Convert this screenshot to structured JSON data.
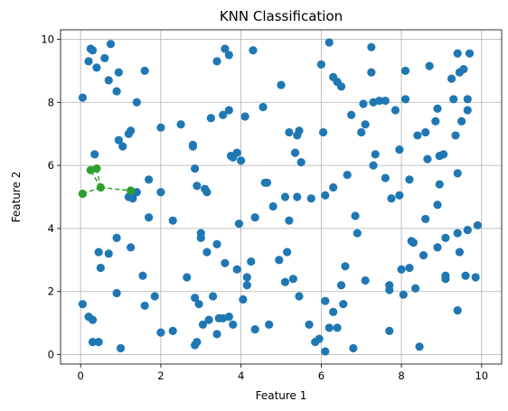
{
  "chart_data": {
    "type": "scatter",
    "title": "KNN Classification",
    "xlabel": "Feature 1",
    "ylabel": "Feature 2",
    "xlim": [
      -0.5,
      10.5
    ],
    "ylim": [
      -0.3,
      10.3
    ],
    "xticks": [
      "0",
      "2",
      "4",
      "6",
      "8",
      "10"
    ],
    "yticks": [
      "0",
      "2",
      "4",
      "6",
      "8",
      "10"
    ],
    "grid": true,
    "legend": "none",
    "colors": {
      "points": "#1f77b4",
      "query": "#2ca02c",
      "grid": "#b0b0b0"
    },
    "query_point": [
      0.5,
      5.3
    ],
    "neighbors": [
      [
        0.05,
        5.1
      ],
      [
        0.25,
        5.85
      ],
      [
        0.4,
        5.9
      ],
      [
        1.25,
        5.2
      ]
    ],
    "points": [
      [
        0.2,
        9.3
      ],
      [
        0.25,
        9.7
      ],
      [
        0.3,
        9.65
      ],
      [
        0.4,
        9.1
      ],
      [
        0.6,
        9.4
      ],
      [
        0.7,
        8.7
      ],
      [
        0.75,
        9.85
      ],
      [
        0.9,
        8.35
      ],
      [
        0.95,
        8.95
      ],
      [
        0.05,
        8.15
      ],
      [
        0.35,
        6.35
      ],
      [
        0.95,
        6.8
      ],
      [
        1.05,
        6.6
      ],
      [
        1.2,
        7.0
      ],
      [
        1.25,
        7.1
      ],
      [
        1.4,
        8.0
      ],
      [
        1.6,
        9.0
      ],
      [
        2.0,
        7.2
      ],
      [
        2.5,
        7.3
      ],
      [
        2.8,
        6.6
      ],
      [
        2.8,
        6.65
      ],
      [
        1.7,
        5.55
      ],
      [
        1.7,
        4.35
      ],
      [
        2.0,
        5.15
      ],
      [
        2.3,
        4.25
      ],
      [
        1.2,
        5.0
      ],
      [
        1.3,
        4.95
      ],
      [
        1.4,
        5.15
      ],
      [
        1.25,
        3.4
      ],
      [
        0.9,
        3.7
      ],
      [
        0.7,
        3.2
      ],
      [
        0.45,
        3.25
      ],
      [
        0.5,
        2.75
      ],
      [
        0.05,
        1.6
      ],
      [
        0.2,
        1.2
      ],
      [
        0.3,
        1.1
      ],
      [
        0.3,
        0.4
      ],
      [
        0.45,
        0.4
      ],
      [
        0.9,
        1.95
      ],
      [
        1.0,
        0.2
      ],
      [
        1.55,
        2.5
      ],
      [
        1.6,
        1.55
      ],
      [
        1.85,
        1.85
      ],
      [
        2.0,
        0.7
      ],
      [
        2.3,
        0.75
      ],
      [
        2.65,
        2.45
      ],
      [
        2.85,
        1.8
      ],
      [
        2.9,
        0.4
      ],
      [
        2.85,
        0.3
      ],
      [
        2.95,
        1.6
      ],
      [
        3.05,
        0.95
      ],
      [
        3.2,
        1.1
      ],
      [
        3.3,
        1.85
      ],
      [
        3.4,
        0.65
      ],
      [
        3.45,
        1.15
      ],
      [
        3.55,
        1.15
      ],
      [
        3.7,
        1.2
      ],
      [
        3.8,
        0.95
      ],
      [
        3.6,
        2.9
      ],
      [
        3.9,
        2.7
      ],
      [
        3.95,
        4.15
      ],
      [
        4.05,
        1.75
      ],
      [
        4.15,
        2.45
      ],
      [
        4.15,
        2.2
      ],
      [
        4.25,
        2.95
      ],
      [
        4.35,
        0.8
      ],
      [
        4.35,
        4.35
      ],
      [
        3.0,
        3.7
      ],
      [
        3.0,
        3.85
      ],
      [
        3.15,
        3.25
      ],
      [
        3.4,
        3.5
      ],
      [
        2.85,
        5.9
      ],
      [
        2.9,
        5.35
      ],
      [
        3.1,
        5.25
      ],
      [
        3.15,
        5.15
      ],
      [
        3.25,
        7.5
      ],
      [
        3.4,
        9.3
      ],
      [
        3.55,
        7.6
      ],
      [
        3.6,
        9.7
      ],
      [
        3.7,
        9.5
      ],
      [
        3.7,
        7.75
      ],
      [
        3.75,
        6.3
      ],
      [
        3.8,
        6.25
      ],
      [
        3.9,
        6.4
      ],
      [
        4.0,
        6.15
      ],
      [
        4.1,
        7.55
      ],
      [
        4.3,
        9.65
      ],
      [
        4.55,
        7.85
      ],
      [
        4.6,
        5.45
      ],
      [
        4.65,
        5.45
      ],
      [
        4.7,
        0.95
      ],
      [
        4.8,
        4.7
      ],
      [
        4.95,
        3.0
      ],
      [
        5.0,
        8.55
      ],
      [
        5.1,
        2.3
      ],
      [
        5.1,
        5.0
      ],
      [
        5.15,
        3.25
      ],
      [
        5.2,
        7.05
      ],
      [
        5.2,
        4.25
      ],
      [
        5.3,
        2.4
      ],
      [
        5.35,
        6.4
      ],
      [
        5.4,
        6.95
      ],
      [
        5.45,
        7.1
      ],
      [
        5.4,
        5.0
      ],
      [
        5.45,
        1.85
      ],
      [
        5.5,
        6.1
      ],
      [
        5.7,
        0.95
      ],
      [
        5.75,
        4.95
      ],
      [
        5.85,
        0.4
      ],
      [
        5.95,
        0.5
      ],
      [
        6.0,
        9.2
      ],
      [
        6.05,
        7.05
      ],
      [
        6.1,
        5.05
      ],
      [
        6.1,
        1.7
      ],
      [
        6.1,
        0.1
      ],
      [
        6.2,
        9.9
      ],
      [
        6.2,
        0.85
      ],
      [
        6.3,
        1.35
      ],
      [
        6.3,
        5.3
      ],
      [
        6.3,
        8.8
      ],
      [
        6.4,
        0.85
      ],
      [
        6.4,
        8.65
      ],
      [
        6.5,
        8.5
      ],
      [
        6.5,
        2.2
      ],
      [
        6.55,
        1.6
      ],
      [
        6.6,
        2.8
      ],
      [
        6.65,
        5.7
      ],
      [
        6.75,
        7.6
      ],
      [
        6.8,
        0.2
      ],
      [
        6.85,
        4.4
      ],
      [
        6.9,
        3.85
      ],
      [
        7.0,
        7.05
      ],
      [
        7.05,
        7.95
      ],
      [
        7.1,
        7.3
      ],
      [
        7.1,
        2.35
      ],
      [
        7.25,
        8.95
      ],
      [
        7.25,
        9.75
      ],
      [
        7.3,
        8.0
      ],
      [
        7.3,
        6.0
      ],
      [
        7.35,
        6.35
      ],
      [
        7.45,
        8.05
      ],
      [
        7.6,
        8.05
      ],
      [
        7.6,
        5.6
      ],
      [
        7.7,
        2.2
      ],
      [
        7.7,
        2.05
      ],
      [
        7.7,
        0.75
      ],
      [
        7.75,
        4.95
      ],
      [
        7.85,
        7.75
      ],
      [
        7.95,
        5.05
      ],
      [
        7.95,
        6.5
      ],
      [
        8.0,
        2.7
      ],
      [
        8.05,
        1.9
      ],
      [
        8.1,
        9.0
      ],
      [
        8.1,
        8.1
      ],
      [
        8.2,
        2.75
      ],
      [
        8.2,
        5.55
      ],
      [
        8.25,
        3.6
      ],
      [
        8.3,
        3.55
      ],
      [
        8.35,
        2.1
      ],
      [
        8.45,
        0.25
      ],
      [
        8.4,
        6.95
      ],
      [
        8.55,
        3.15
      ],
      [
        8.6,
        4.3
      ],
      [
        8.6,
        7.05
      ],
      [
        8.65,
        6.2
      ],
      [
        8.7,
        9.15
      ],
      [
        8.85,
        7.4
      ],
      [
        8.9,
        7.8
      ],
      [
        8.9,
        4.75
      ],
      [
        8.9,
        3.4
      ],
      [
        8.95,
        6.3
      ],
      [
        8.95,
        5.4
      ],
      [
        9.05,
        6.35
      ],
      [
        9.1,
        3.7
      ],
      [
        9.1,
        2.5
      ],
      [
        9.1,
        2.4
      ],
      [
        9.25,
        8.75
      ],
      [
        9.3,
        8.1
      ],
      [
        9.35,
        6.95
      ],
      [
        9.4,
        5.75
      ],
      [
        9.4,
        3.85
      ],
      [
        9.4,
        1.4
      ],
      [
        9.4,
        9.55
      ],
      [
        9.45,
        8.95
      ],
      [
        9.45,
        3.25
      ],
      [
        9.5,
        7.4
      ],
      [
        9.55,
        9.05
      ],
      [
        9.6,
        2.5
      ],
      [
        9.65,
        8.1
      ],
      [
        9.65,
        3.95
      ],
      [
        9.65,
        7.75
      ],
      [
        9.7,
        9.55
      ],
      [
        9.85,
        2.45
      ],
      [
        9.9,
        4.1
      ]
    ]
  }
}
